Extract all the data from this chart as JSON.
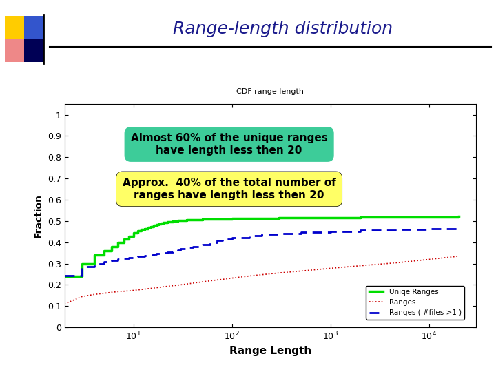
{
  "title": "Range-length distribution",
  "subtitle": "CDF range length",
  "xlabel": "Range Length",
  "ylabel": "Fraction",
  "xlim_log": [
    2,
    30000
  ],
  "ylim": [
    0,
    1.05
  ],
  "yticks": [
    0,
    0.1,
    0.2,
    0.3,
    0.4,
    0.5,
    0.6,
    0.7,
    0.8,
    0.9,
    1
  ],
  "ytick_labels": [
    "0",
    "0.1",
    "0.2",
    "0.3",
    "0.4",
    "0.5",
    "0.6",
    "0.7",
    "0.8",
    "0.9",
    "1"
  ],
  "xticks": [
    10,
    100,
    1000,
    10000
  ],
  "background_color": "#ffffff",
  "title_color": "#1a1a8c",
  "title_fontsize": 18,
  "annotation1_text": "Almost 60% of the unique ranges\nhave length less then 20",
  "annotation1_bg": "#3dcc99",
  "annotation2_text": "Approx.  40% of the total number of\nranges have length less then 20",
  "annotation2_bg": "#ffff66",
  "line1_color": "#00dd00",
  "line1_label": "Uniqe Ranges",
  "line1_lw": 2.5,
  "line2_color": "#cc0000",
  "line2_label": "Ranges",
  "line2_lw": 1.2,
  "line3_color": "#0000cc",
  "line3_label": "Ranges ( #files >1 )",
  "line3_lw": 2.0,
  "unique_ranges_x": [
    2,
    3,
    4,
    5,
    6,
    7,
    8,
    9,
    10,
    11,
    12,
    13,
    14,
    15,
    16,
    17,
    18,
    19,
    20,
    22,
    25,
    28,
    30,
    35,
    40,
    50,
    60,
    70,
    80,
    100,
    150,
    200,
    300,
    500,
    1000,
    2000,
    5000,
    10000,
    20000
  ],
  "unique_ranges_y": [
    0.24,
    0.3,
    0.34,
    0.36,
    0.38,
    0.4,
    0.415,
    0.43,
    0.445,
    0.455,
    0.46,
    0.465,
    0.47,
    0.475,
    0.48,
    0.485,
    0.488,
    0.491,
    0.494,
    0.497,
    0.5,
    0.502,
    0.503,
    0.505,
    0.507,
    0.508,
    0.509,
    0.51,
    0.511,
    0.512,
    0.513,
    0.514,
    0.515,
    0.516,
    0.517,
    0.518,
    0.519,
    0.52,
    0.521
  ],
  "ranges_x": [
    2,
    3,
    4,
    5,
    6,
    7,
    8,
    9,
    10,
    12,
    14,
    16,
    18,
    20,
    25,
    30,
    40,
    50,
    60,
    70,
    80,
    100,
    150,
    200,
    300,
    500,
    1000,
    2000,
    5000,
    10000,
    20000
  ],
  "ranges_y": [
    0.11,
    0.145,
    0.155,
    0.16,
    0.165,
    0.168,
    0.17,
    0.172,
    0.174,
    0.178,
    0.182,
    0.185,
    0.188,
    0.191,
    0.196,
    0.2,
    0.208,
    0.214,
    0.219,
    0.223,
    0.226,
    0.232,
    0.242,
    0.248,
    0.256,
    0.265,
    0.278,
    0.29,
    0.305,
    0.32,
    0.335
  ],
  "ranges_files_x": [
    2,
    3,
    4,
    5,
    6,
    7,
    8,
    9,
    10,
    11,
    12,
    13,
    14,
    15,
    16,
    17,
    18,
    19,
    20,
    22,
    25,
    28,
    30,
    35,
    40,
    50,
    60,
    70,
    80,
    100,
    150,
    200,
    300,
    500,
    1000,
    2000,
    5000,
    10000,
    20000
  ],
  "ranges_files_y": [
    0.245,
    0.285,
    0.3,
    0.31,
    0.315,
    0.32,
    0.325,
    0.328,
    0.33,
    0.333,
    0.336,
    0.338,
    0.34,
    0.342,
    0.344,
    0.346,
    0.347,
    0.349,
    0.35,
    0.355,
    0.36,
    0.365,
    0.37,
    0.375,
    0.38,
    0.39,
    0.4,
    0.408,
    0.414,
    0.422,
    0.432,
    0.438,
    0.443,
    0.447,
    0.452,
    0.456,
    0.46,
    0.464,
    0.468
  ],
  "sq_yellow": "#ffcc00",
  "sq_blue": "#3355cc",
  "sq_pink": "#ee8888",
  "sq_darkblue": "#000055"
}
